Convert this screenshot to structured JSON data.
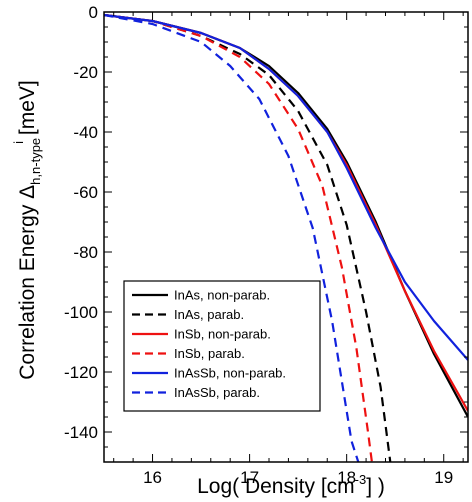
{
  "chart_data": {
    "type": "line",
    "xlabel": {
      "prefix": "Log( Density [cm",
      "sup": "-3",
      "suffix": "] )"
    },
    "ylabel": {
      "prefix": "Correlation Energy Δ",
      "sub": "h,n-type",
      "sup": "i",
      "suffix": " [meV]"
    },
    "xlim": [
      15.5,
      19.25
    ],
    "ylim": [
      -150,
      0
    ],
    "xticks": [
      16,
      17,
      18,
      19
    ],
    "yticks": [
      0,
      -20,
      -40,
      -60,
      -80,
      -100,
      -120,
      -140
    ],
    "legend_position": "lower-left",
    "series": [
      {
        "name": "InAs, non-parab.",
        "color": "#000000",
        "dash": "solid",
        "x": [
          15.5,
          16.0,
          16.5,
          16.9,
          17.2,
          17.5,
          17.8,
          18.0,
          18.3,
          18.6,
          18.9,
          19.25
        ],
        "y": [
          -1,
          -3,
          -7,
          -12,
          -18,
          -27,
          -39,
          -50,
          -70,
          -93,
          -114,
          -135
        ]
      },
      {
        "name": "InAs, parab.",
        "color": "#000000",
        "dash": "dashed",
        "x": [
          15.5,
          16.0,
          16.5,
          16.9,
          17.2,
          17.5,
          17.8,
          18.0,
          18.2,
          18.35,
          18.45
        ],
        "y": [
          -1,
          -3,
          -8,
          -14,
          -21,
          -33,
          -51,
          -71,
          -100,
          -125,
          -150
        ]
      },
      {
        "name": "InSb, non-parab.",
        "color": "#ee1111",
        "dash": "solid",
        "x": [
          15.5,
          16.0,
          16.5,
          16.9,
          17.2,
          17.5,
          17.8,
          18.0,
          18.3,
          18.6,
          18.9,
          19.25
        ],
        "y": [
          -1,
          -3,
          -7,
          -12,
          -19,
          -28,
          -40,
          -51,
          -71,
          -93,
          -113,
          -133
        ]
      },
      {
        "name": "InSb, parab.",
        "color": "#ee1111",
        "dash": "dashed",
        "x": [
          15.5,
          16.0,
          16.5,
          16.9,
          17.2,
          17.5,
          17.75,
          17.95,
          18.1,
          18.22,
          18.26
        ],
        "y": [
          -1,
          -3,
          -8,
          -15,
          -24,
          -39,
          -58,
          -85,
          -112,
          -140,
          -150
        ]
      },
      {
        "name": "InAsSb, non-parab.",
        "color": "#1122dd",
        "dash": "solid",
        "x": [
          15.5,
          16.0,
          16.5,
          16.9,
          17.2,
          17.5,
          17.8,
          18.0,
          18.3,
          18.6,
          18.9,
          19.25
        ],
        "y": [
          -1,
          -3,
          -7,
          -12,
          -19,
          -28,
          -40,
          -52,
          -72,
          -90,
          -103,
          -116
        ]
      },
      {
        "name": "InAsSb, parab.",
        "color": "#1122dd",
        "dash": "dashed",
        "x": [
          15.5,
          16.0,
          16.5,
          16.8,
          17.1,
          17.4,
          17.65,
          17.85,
          17.95,
          18.05,
          18.12
        ],
        "y": [
          -1,
          -4,
          -10,
          -18,
          -29,
          -48,
          -72,
          -103,
          -123,
          -143,
          -150
        ]
      }
    ]
  }
}
